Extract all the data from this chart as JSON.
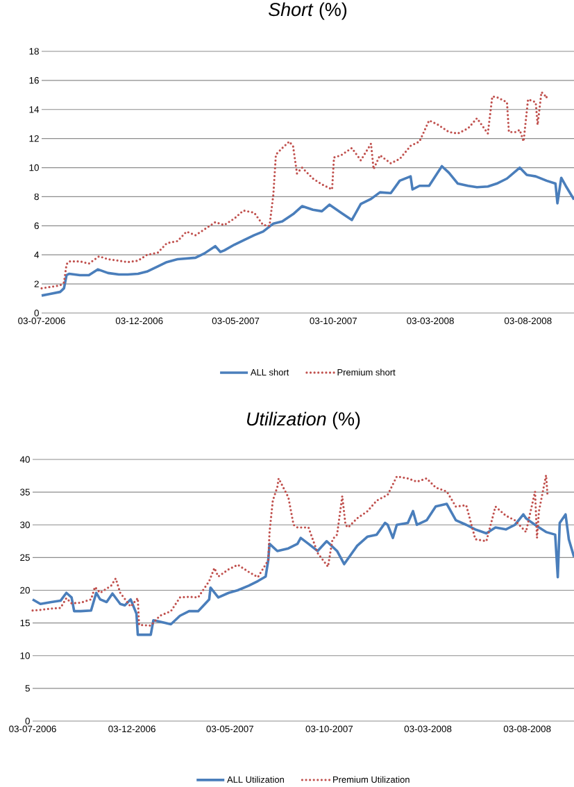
{
  "chart_data": [
    {
      "type": "line",
      "title": "*Short* (%)",
      "xlim": [
        "2006-07-03",
        "2008-10-14"
      ],
      "ylim": [
        0,
        18
      ],
      "yticks": [
        0,
        2,
        4,
        6,
        8,
        10,
        12,
        14,
        16,
        18
      ],
      "xticks": [
        {
          "value": "2006-07-03",
          "label": "03-07-2006"
        },
        {
          "value": "2006-12-03",
          "label": "03-12-2006"
        },
        {
          "value": "2007-05-03",
          "label": "03-05-2007"
        },
        {
          "value": "2007-10-03",
          "label": "03-10-2007"
        },
        {
          "value": "2008-03-03",
          "label": "03-03-2008"
        },
        {
          "value": "2008-08-03",
          "label": "03-08-2008"
        }
      ],
      "grid": "y",
      "legend": "bottom",
      "series": [
        {
          "name": "ALL short",
          "color": "#4a7ebb",
          "line_style": "solid",
          "x": [
            "2006-07-03",
            "2006-07-15",
            "2006-08-01",
            "2006-08-07",
            "2006-08-11",
            "2006-08-15",
            "2006-09-01",
            "2006-09-15",
            "2006-09-29",
            "2006-10-15",
            "2006-11-01",
            "2006-11-15",
            "2006-12-01",
            "2006-12-15",
            "2007-01-01",
            "2007-01-15",
            "2007-02-01",
            "2007-02-15",
            "2007-03-01",
            "2007-03-15",
            "2007-04-01",
            "2007-04-09",
            "2007-04-15",
            "2007-05-01",
            "2007-05-15",
            "2007-06-01",
            "2007-06-15",
            "2007-07-01",
            "2007-07-15",
            "2007-08-01",
            "2007-08-15",
            "2007-09-01",
            "2007-09-15",
            "2007-09-27",
            "2007-10-15",
            "2007-11-01",
            "2007-11-15",
            "2007-12-01",
            "2007-12-15",
            "2008-01-01",
            "2008-01-15",
            "2008-02-01",
            "2008-02-04",
            "2008-02-15",
            "2008-03-01",
            "2008-03-21",
            "2008-04-01",
            "2008-04-15",
            "2008-05-01",
            "2008-05-15",
            "2008-06-01",
            "2008-06-15",
            "2008-07-01",
            "2008-07-21",
            "2008-08-01",
            "2008-08-15",
            "2008-09-01",
            "2008-09-15",
            "2008-09-18",
            "2008-09-24",
            "2008-10-01",
            "2008-10-14"
          ],
          "values": [
            1.2,
            1.3,
            1.45,
            1.7,
            2.6,
            2.7,
            2.6,
            2.6,
            3.0,
            2.75,
            2.65,
            2.65,
            2.7,
            2.85,
            3.2,
            3.5,
            3.7,
            3.75,
            3.8,
            4.1,
            4.6,
            4.2,
            4.3,
            4.7,
            5.0,
            5.35,
            5.6,
            6.15,
            6.3,
            6.8,
            7.35,
            7.1,
            7.0,
            7.45,
            6.9,
            6.4,
            7.5,
            7.85,
            8.3,
            8.25,
            9.1,
            9.4,
            8.5,
            8.75,
            8.75,
            10.1,
            9.65,
            8.9,
            8.75,
            8.65,
            8.7,
            8.9,
            9.25,
            10.0,
            9.5,
            9.4,
            9.1,
            8.9,
            7.55,
            9.3,
            8.75,
            7.8
          ]
        },
        {
          "name": "Premium short",
          "color": "#c0504d",
          "line_style": "dotted",
          "x": [
            "2006-07-03",
            "2006-08-01",
            "2006-08-07",
            "2006-08-11",
            "2006-08-15",
            "2006-09-01",
            "2006-09-15",
            "2006-10-01",
            "2006-10-15",
            "2006-11-01",
            "2006-11-15",
            "2006-12-01",
            "2006-12-15",
            "2007-01-01",
            "2007-01-15",
            "2007-02-01",
            "2007-02-15",
            "2007-03-01",
            "2007-03-15",
            "2007-04-01",
            "2007-04-15",
            "2007-05-01",
            "2007-05-15",
            "2007-06-01",
            "2007-06-15",
            "2007-06-25",
            "2007-07-01",
            "2007-07-05",
            "2007-07-15",
            "2007-07-26",
            "2007-08-01",
            "2007-08-07",
            "2007-08-15",
            "2007-09-01",
            "2007-09-15",
            "2007-10-01",
            "2007-10-04",
            "2007-10-15",
            "2007-11-01",
            "2007-11-15",
            "2007-12-01",
            "2007-12-05",
            "2007-12-15",
            "2008-01-01",
            "2008-01-15",
            "2008-02-01",
            "2008-02-15",
            "2008-03-01",
            "2008-03-15",
            "2008-04-01",
            "2008-04-15",
            "2008-05-01",
            "2008-05-15",
            "2008-06-01",
            "2008-06-08",
            "2008-06-15",
            "2008-07-01",
            "2008-07-04",
            "2008-07-15",
            "2008-07-21",
            "2008-07-27",
            "2008-08-03",
            "2008-08-15",
            "2008-08-18",
            "2008-08-24",
            "2008-09-01"
          ],
          "values": [
            1.7,
            1.9,
            2.1,
            3.35,
            3.55,
            3.55,
            3.4,
            3.9,
            3.7,
            3.6,
            3.5,
            3.6,
            4.0,
            4.15,
            4.8,
            4.95,
            5.6,
            5.35,
            5.75,
            6.25,
            6.05,
            6.5,
            7.05,
            6.9,
            6.05,
            6.0,
            8.15,
            10.9,
            11.35,
            11.8,
            11.45,
            9.6,
            10.0,
            9.25,
            8.85,
            8.5,
            10.7,
            10.85,
            11.35,
            10.5,
            11.65,
            9.9,
            10.85,
            10.3,
            10.6,
            11.5,
            11.8,
            13.25,
            12.95,
            12.45,
            12.35,
            12.7,
            13.4,
            12.35,
            14.9,
            14.85,
            14.5,
            12.45,
            12.45,
            12.6,
            11.8,
            14.7,
            14.5,
            12.95,
            15.2,
            14.85
          ]
        }
      ]
    },
    {
      "type": "line",
      "title": "*Utilization* (%)",
      "xlim": [
        "2006-07-03",
        "2008-10-14"
      ],
      "ylim": [
        0,
        40
      ],
      "yticks": [
        0,
        5,
        10,
        15,
        20,
        25,
        30,
        35,
        40
      ],
      "xticks": [
        {
          "value": "2006-07-03",
          "label": "03-07-2006"
        },
        {
          "value": "2006-12-03",
          "label": "03-12-2006"
        },
        {
          "value": "2007-05-03",
          "label": "03-05-2007"
        },
        {
          "value": "2007-10-03",
          "label": "03-10-2007"
        },
        {
          "value": "2008-03-03",
          "label": "03-03-2008"
        },
        {
          "value": "2008-08-03",
          "label": "03-08-2008"
        }
      ],
      "grid": "y",
      "legend": "bottom",
      "series": [
        {
          "name": "ALL Utilization",
          "color": "#4a7ebb",
          "line_style": "solid",
          "x": [
            "2006-07-03",
            "2006-07-15",
            "2006-08-01",
            "2006-08-15",
            "2006-08-24",
            "2006-09-01",
            "2006-09-05",
            "2006-09-15",
            "2006-10-01",
            "2006-10-09",
            "2006-10-15",
            "2006-10-25",
            "2006-11-03",
            "2006-11-15",
            "2006-11-22",
            "2006-12-01",
            "2006-12-10",
            "2006-12-12",
            "2006-12-15",
            "2007-01-01",
            "2007-01-05",
            "2007-01-15",
            "2007-02-01",
            "2007-02-15",
            "2007-03-01",
            "2007-03-15",
            "2007-04-01",
            "2007-04-03",
            "2007-04-15",
            "2007-05-01",
            "2007-05-15",
            "2007-06-01",
            "2007-06-15",
            "2007-06-27",
            "2007-07-01",
            "2007-07-03",
            "2007-07-15",
            "2007-08-01",
            "2007-08-15",
            "2007-08-20",
            "2007-09-01",
            "2007-09-15",
            "2007-09-29",
            "2007-10-15",
            "2007-10-26",
            "2007-11-15",
            "2007-12-01",
            "2007-12-15",
            "2007-12-28",
            "2008-01-01",
            "2008-01-09",
            "2008-01-15",
            "2008-02-01",
            "2008-02-09",
            "2008-02-15",
            "2008-03-01",
            "2008-03-15",
            "2008-04-01",
            "2008-04-15",
            "2008-05-01",
            "2008-05-15",
            "2008-06-01",
            "2008-06-15",
            "2008-07-01",
            "2008-07-15",
            "2008-07-28",
            "2008-08-01",
            "2008-08-15",
            "2008-09-01",
            "2008-09-15",
            "2008-09-19",
            "2008-09-22",
            "2008-10-01",
            "2008-10-06",
            "2008-10-14"
          ],
          "values": [
            18.6,
            17.9,
            18.2,
            18.4,
            19.6,
            18.9,
            16.8,
            16.8,
            16.9,
            19.6,
            18.6,
            18.2,
            19.5,
            17.9,
            17.7,
            18.6,
            16.4,
            13.2,
            13.2,
            13.2,
            15.4,
            15.2,
            14.8,
            16.1,
            16.8,
            16.8,
            18.6,
            20.4,
            18.9,
            19.6,
            20.0,
            20.7,
            21.4,
            22.1,
            24.6,
            27.1,
            26.0,
            26.4,
            27.1,
            28.0,
            27.1,
            26.0,
            27.5,
            26.0,
            24.0,
            26.8,
            28.2,
            28.5,
            30.3,
            30.0,
            28.0,
            30.0,
            30.3,
            32.1,
            30.0,
            30.7,
            32.8,
            33.2,
            30.7,
            30.0,
            29.3,
            28.7,
            29.6,
            29.3,
            30.0,
            31.6,
            31.0,
            30.0,
            28.9,
            28.5,
            22.0,
            30.3,
            31.6,
            27.8,
            25.1
          ]
        },
        {
          "name": "Premium Utilization",
          "color": "#c0504d",
          "line_style": "dotted",
          "x": [
            "2006-07-03",
            "2006-07-15",
            "2006-08-01",
            "2006-08-15",
            "2006-08-24",
            "2006-09-01",
            "2006-09-15",
            "2006-10-01",
            "2006-10-07",
            "2006-10-15",
            "2006-11-01",
            "2006-11-08",
            "2006-11-15",
            "2006-12-01",
            "2006-12-12",
            "2006-12-14",
            "2007-01-01",
            "2007-01-15",
            "2007-02-01",
            "2007-02-15",
            "2007-03-01",
            "2007-03-15",
            "2007-04-01",
            "2007-04-09",
            "2007-04-15",
            "2007-05-01",
            "2007-05-15",
            "2007-06-01",
            "2007-06-15",
            "2007-07-01",
            "2007-07-03",
            "2007-07-08",
            "2007-07-15",
            "2007-07-17",
            "2007-08-01",
            "2007-08-09",
            "2007-08-15",
            "2007-09-01",
            "2007-09-15",
            "2007-10-01",
            "2007-10-08",
            "2007-10-15",
            "2007-10-23",
            "2007-10-28",
            "2007-11-01",
            "2007-11-15",
            "2007-12-01",
            "2007-12-15",
            "2008-01-01",
            "2008-01-15",
            "2008-02-01",
            "2008-02-15",
            "2008-03-01",
            "2008-03-15",
            "2008-04-01",
            "2008-04-15",
            "2008-05-01",
            "2008-05-15",
            "2008-06-01",
            "2008-06-15",
            "2008-07-01",
            "2008-07-15",
            "2008-08-01",
            "2008-08-15",
            "2008-08-18",
            "2008-08-21",
            "2008-09-01",
            "2008-09-03"
          ],
          "values": [
            16.9,
            17.0,
            17.2,
            17.3,
            18.8,
            18.0,
            18.1,
            18.6,
            20.5,
            19.6,
            20.7,
            21.8,
            19.6,
            17.5,
            18.8,
            14.7,
            14.6,
            16.1,
            16.8,
            18.9,
            19.0,
            18.9,
            21.4,
            23.4,
            22.1,
            23.2,
            23.9,
            22.8,
            22.0,
            24.6,
            28.9,
            33.7,
            35.8,
            37.1,
            34.2,
            30.0,
            29.6,
            29.6,
            25.7,
            23.6,
            27.8,
            28.5,
            34.4,
            30.0,
            29.6,
            31.0,
            32.1,
            33.7,
            34.6,
            37.4,
            37.1,
            36.6,
            37.1,
            35.7,
            35.1,
            32.8,
            33.0,
            27.8,
            27.5,
            32.8,
            31.4,
            30.7,
            28.9,
            35.1,
            28.0,
            32.1,
            37.6,
            34.8
          ]
        }
      ]
    }
  ]
}
